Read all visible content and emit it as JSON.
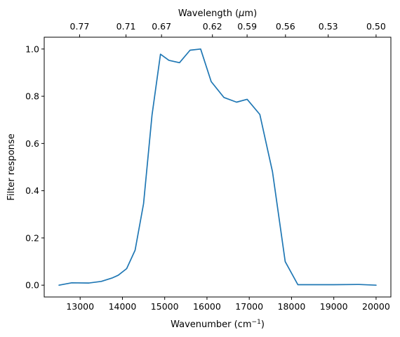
{
  "chart_data": {
    "type": "line",
    "xlabel_base": "Wavenumber (cm",
    "xlabel_sup": "−1",
    "xlabel_end": ")",
    "ylabel": "Filter response",
    "toplabel_base": "Wavelength (",
    "toplabel_mu": "μ",
    "toplabel_end": "m)",
    "xlim": [
      12150,
      20350
    ],
    "ylim": [
      -0.05,
      1.05
    ],
    "x_ticks": [
      13000,
      14000,
      15000,
      16000,
      17000,
      18000,
      19000,
      20000
    ],
    "y_ticks": [
      0.0,
      0.2,
      0.4,
      0.6,
      0.8,
      1.0
    ],
    "y_tick_labels": [
      "0.0",
      "0.2",
      "0.4",
      "0.6",
      "0.8",
      "1.0"
    ],
    "top_ticks": [
      {
        "label": "0.77",
        "wavenumber": 12987
      },
      {
        "label": "0.71",
        "wavenumber": 14085
      },
      {
        "label": "0.67",
        "wavenumber": 14925
      },
      {
        "label": "0.62",
        "wavenumber": 16129
      },
      {
        "label": "0.59",
        "wavenumber": 16949
      },
      {
        "label": "0.56",
        "wavenumber": 17857
      },
      {
        "label": "0.53",
        "wavenumber": 18868
      },
      {
        "label": "0.50",
        "wavenumber": 20000
      }
    ],
    "series": [
      {
        "color": "#1f77b4",
        "x": [
          12500,
          12800,
          13200,
          13500,
          13750,
          13900,
          14100,
          14300,
          14500,
          14700,
          14900,
          15100,
          15350,
          15600,
          15850,
          16100,
          16400,
          16700,
          16950,
          17250,
          17550,
          17850,
          18150,
          18500,
          19000,
          19600,
          20000
        ],
        "y": [
          0.0,
          0.01,
          0.009,
          0.016,
          0.03,
          0.042,
          0.07,
          0.148,
          0.345,
          0.72,
          0.978,
          0.952,
          0.942,
          0.995,
          1.0,
          0.862,
          0.795,
          0.775,
          0.787,
          0.723,
          0.48,
          0.1,
          0.002,
          0.002,
          0.002,
          0.003,
          0.0
        ]
      }
    ]
  }
}
